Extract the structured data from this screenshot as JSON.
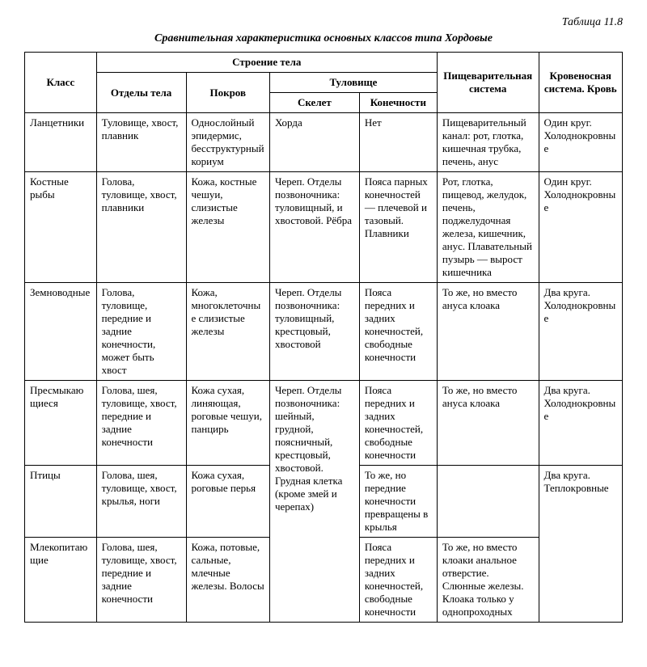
{
  "tableLabel": "Таблица 11.8",
  "tableTitle": "Сравнительная характеристика основных классов типа Хордовые",
  "headers": {
    "class": "Класс",
    "bodyStructure": "Строение тела",
    "bodyParts": "Отделы тела",
    "cover": "Покров",
    "trunk": "Туловище",
    "skeleton": "Скелет",
    "limbs": "Конечности",
    "digestive": "Пищеварительная система",
    "blood": "Кровеносная система. Кровь"
  },
  "rows": [
    {
      "class": "Ланцетники",
      "bodyParts": "Туловище, хвост, плавник",
      "cover": "Однослойный эпидермис, бесструктурный кориум",
      "skeleton": "Хорда",
      "limbs": "Нет",
      "digestive": "Пищеварительный канал: рот, глотка, кишечная трубка, печень, анус",
      "blood": "Один круг. Холоднокровные"
    },
    {
      "class": "Костные рыбы",
      "bodyParts": "Голова, туловище, хвост, плавники",
      "cover": "Кожа, костные чешуи, слизистые железы",
      "skeleton": "Череп. Отделы позвоночника: туловищный, и хвостовой. Рёбра",
      "limbs": "Пояса парных конечностей — плечевой и тазовый. Плавники",
      "digestive": "Рот, глотка, пищевод, желудок, печень, поджелудочная железа, кишечник, анус. Плавательный пузырь — вырост кишечника",
      "blood": "Один круг. Холоднокровные"
    },
    {
      "class": "Земноводные",
      "bodyParts": "Голова, туловище, передние и задние конечности, может быть хвост",
      "cover": "Кожа, многоклеточные слизистые железы",
      "skeleton": "Череп. Отделы позвоночника: туловищный, крестцовый, хвостовой",
      "limbs": "Пояса передних и задних конечностей, свободные конечности",
      "digestive": "То же, но вместо ануса клоака",
      "blood": "Два круга. Холоднокровные"
    },
    {
      "class": "Пресмыкающиеся",
      "bodyParts": "Голова, шея, туловище, хвост, передние и задние конечности",
      "cover": "Кожа сухая, линяющая, роговые чешуи, панцирь",
      "skeleton": "Череп. Отделы позвоночника: шейный, грудной, поясничный, крестцовый, хвостовой. Грудная клетка (кроме змей и черепах)",
      "limbs": "Пояса передних и задних конечностей, свободные конечности",
      "digestive": "То же, но вместо ануса клоака",
      "blood": "Два круга. Холоднокровные"
    },
    {
      "class": "Птицы",
      "bodyParts": "Голова, шея, туловище, хвост, крылья, ноги",
      "cover": "Кожа сухая, роговые перья",
      "limbs": "То же, но передние конечности превращены в крылья",
      "blood": "Два круга. Теплокровные"
    },
    {
      "class": "Млекопитающие",
      "bodyParts": "Голова, шея, туловище, хвост, передние и задние конечности",
      "cover": "Кожа, потовые, сальные, млечные железы. Волосы",
      "limbs": "Пояса передних и задних конечностей, свободные конечности",
      "digestive": "То же, но вместо клоаки анальное отверстие. Слюнные железы. Клоака только у однопроходных"
    }
  ]
}
